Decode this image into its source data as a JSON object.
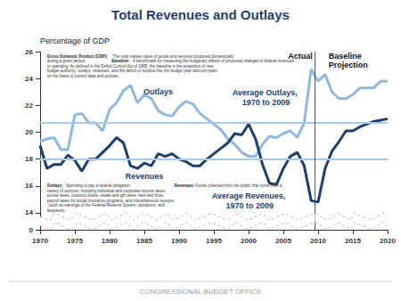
{
  "chart_data": {
    "type": "line",
    "title": "Total Revenues and Outlays",
    "y_label": "Percentage of GDP",
    "x": [
      1970,
      1971,
      1972,
      1973,
      1974,
      1975,
      1976,
      1977,
      1978,
      1979,
      1980,
      1981,
      1982,
      1983,
      1984,
      1985,
      1986,
      1987,
      1988,
      1989,
      1990,
      1991,
      1992,
      1993,
      1994,
      1995,
      1996,
      1997,
      1998,
      1999,
      2000,
      2001,
      2002,
      2003,
      2004,
      2005,
      2006,
      2007,
      2008,
      2009,
      2010,
      2011,
      2012,
      2013,
      2014,
      2015,
      2016,
      2017,
      2018,
      2019,
      2020
    ],
    "series": [
      {
        "name": "Outlays",
        "color": "#8fb8de",
        "values": [
          19.3,
          19.5,
          19.6,
          18.7,
          18.7,
          21.3,
          21.4,
          20.7,
          20.7,
          20.1,
          21.7,
          22.2,
          23.1,
          23.5,
          22.2,
          22.8,
          22.5,
          21.6,
          21.3,
          21.2,
          21.9,
          22.3,
          22.1,
          21.4,
          21.0,
          20.6,
          20.2,
          19.5,
          19.1,
          18.5,
          18.2,
          18.2,
          19.1,
          19.7,
          19.6,
          19.9,
          20.1,
          19.6,
          20.7,
          24.7,
          23.8,
          24.3,
          23.0,
          22.5,
          22.5,
          22.8,
          23.3,
          23.3,
          23.3,
          23.8,
          23.8
        ]
      },
      {
        "name": "Revenues",
        "color": "#1c3f6e",
        "values": [
          19.0,
          17.3,
          17.6,
          17.6,
          18.3,
          17.9,
          17.1,
          18.0,
          18.0,
          18.5,
          19.0,
          19.6,
          19.2,
          17.5,
          17.3,
          17.7,
          17.5,
          18.4,
          18.2,
          18.4,
          18.0,
          17.8,
          17.5,
          17.5,
          18.0,
          18.4,
          18.8,
          19.2,
          19.9,
          19.8,
          20.6,
          19.5,
          17.6,
          16.2,
          16.1,
          17.3,
          18.2,
          18.5,
          17.5,
          14.9,
          14.8,
          17.3,
          18.6,
          19.3,
          20.1,
          20.1,
          20.4,
          20.6,
          20.8,
          20.9,
          21.0
        ]
      }
    ],
    "reference_lines": [
      {
        "label": "Average Outlays, 1970 to 2009",
        "value": 20.7,
        "color": "#a9c9e8"
      },
      {
        "label": "Average Revenues, 1970 to 2009",
        "value": 18.0,
        "color": "#a9c9e8"
      }
    ],
    "projection_start": 2009.5,
    "annotations": [
      "Actual",
      "Baseline Projection"
    ],
    "notes": [
      {
        "term": "Gross Domestic Product (GDP):",
        "text": "The total market value of goods and services produced domestically during a given period."
      },
      {
        "term": "Baseline:",
        "text": "A benchmark for measuring the budgetary effects of proposed changes in federal revenues or spending. As defined in the Deficit Control Act of 1985, the baseline is the projection of new budget authority, outlays, revenues, and the deficit or surplus into the budget year and out-years on the basis of current laws and policies."
      },
      {
        "term": "Outlays:",
        "text": "Spending to pay a federal obligation."
      },
      {
        "term": "Revenues:",
        "text": "Funds collected from the public that come from a variety of sources, including individual and corporate income taxes, excise taxes, customs duties, estate and gift taxes, fees and fines, payroll taxes for social insurance programs, and miscellaneous receipts (such as earnings of the Federal Reserve System, donations, and bequests)."
      }
    ],
    "footer": "CONGRESSIONAL BUDGET OFFICE",
    "xlim": [
      1970,
      2020
    ],
    "xticks": [
      1970,
      1975,
      1980,
      1985,
      1990,
      1995,
      2000,
      2005,
      2010,
      2015,
      2020
    ],
    "ylim": [
      0,
      26
    ],
    "yticks": [
      0,
      14,
      16,
      18,
      20,
      22,
      24,
      26
    ],
    "grid": false
  }
}
